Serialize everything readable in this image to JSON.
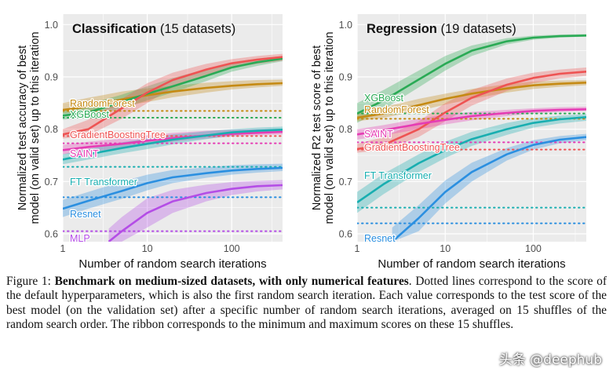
{
  "figure": {
    "caption": {
      "label": "Figure 1:",
      "bold_title": "Benchmark on medium-sized datasets, with only numerical features",
      "text": ". Dotted lines correspond to the score of the default hyperparameters, which is also the first random search iteration. Each value corresponds to the test score of the best model (on the validation set) after a specific number of random search iterations, averaged on 15 shuffles of the random search order. The ribbon corresponds to the minimum and maximum scores on these 15 shuffles."
    },
    "watermark": "头条 @deephub"
  },
  "colors": {
    "RandomForest": "#c58a14",
    "XGBoost": "#2aaa55",
    "GradientBoostingTree": "#ee5353",
    "SAINT": "#e53cb4",
    "FT Transformer": "#19aeb0",
    "Resnet": "#2b8fe0",
    "MLP": "#b44de6",
    "background": "#ebebeb",
    "grid": "#ffffff"
  },
  "chart_data": [
    {
      "type": "line",
      "title_bold": "Classification",
      "title_rest": " (15 datasets)",
      "xlabel": "Number of random search iterations",
      "ylabel_line1": "Normalized test accuracy of best",
      "ylabel_line2": "model (on valid set) up to this iteration",
      "xscale": "log",
      "xlim": [
        1,
        400
      ],
      "ylim": [
        0.585,
        1.02
      ],
      "xticks": [
        1,
        10,
        100
      ],
      "xtick_labels": [
        "1",
        "10",
        "100"
      ],
      "yticks": [
        0.6,
        0.7,
        0.8,
        0.9,
        1.0
      ],
      "ytick_labels": [
        "0.6",
        "0.7",
        "0.8",
        "0.9",
        "1.0"
      ],
      "series": [
        {
          "name": "RandomForest",
          "default": 0.835,
          "x": [
            1,
            2,
            5,
            10,
            20,
            50,
            100,
            200,
            400
          ],
          "y": [
            0.837,
            0.843,
            0.857,
            0.865,
            0.872,
            0.879,
            0.883,
            0.886,
            0.888
          ],
          "lo": [
            0.83,
            0.833,
            0.843,
            0.852,
            0.861,
            0.87,
            0.876,
            0.88,
            0.883
          ],
          "hi": [
            0.85,
            0.86,
            0.872,
            0.878,
            0.883,
            0.889,
            0.892,
            0.894,
            0.895
          ],
          "label_x": 1.0,
          "label_y": 0.85
        },
        {
          "name": "XGBoost",
          "default": 0.822,
          "x": [
            1,
            2,
            5,
            10,
            20,
            50,
            100,
            200,
            400
          ],
          "y": [
            0.826,
            0.832,
            0.852,
            0.868,
            0.882,
            0.902,
            0.918,
            0.928,
            0.935
          ],
          "lo": [
            0.818,
            0.824,
            0.84,
            0.855,
            0.87,
            0.892,
            0.91,
            0.921,
            0.93
          ],
          "hi": [
            0.836,
            0.848,
            0.866,
            0.882,
            0.898,
            0.915,
            0.928,
            0.935,
            0.94
          ],
          "label_x": 1.0,
          "label_y": 0.829
        },
        {
          "name": "GradientBoostingTree",
          "default": 0.787,
          "x": [
            1,
            2,
            5,
            10,
            20,
            50,
            100,
            200,
            400
          ],
          "y": [
            0.79,
            0.8,
            0.84,
            0.87,
            0.894,
            0.914,
            0.926,
            0.933,
            0.938
          ],
          "lo": [
            0.782,
            0.788,
            0.82,
            0.85,
            0.88,
            0.903,
            0.917,
            0.925,
            0.931
          ],
          "hi": [
            0.8,
            0.818,
            0.858,
            0.888,
            0.908,
            0.925,
            0.934,
            0.94,
            0.944
          ],
          "label_x": 1.0,
          "label_y": 0.79
        },
        {
          "name": "SAINT",
          "default": 0.773,
          "x": [
            1,
            2,
            5,
            10,
            20,
            50,
            100,
            200,
            400
          ],
          "y": [
            0.76,
            0.766,
            0.772,
            0.778,
            0.783,
            0.788,
            0.791,
            0.793,
            0.795
          ],
          "lo": [
            0.752,
            0.757,
            0.763,
            0.77,
            0.776,
            0.782,
            0.786,
            0.788,
            0.79
          ],
          "hi": [
            0.77,
            0.776,
            0.782,
            0.788,
            0.793,
            0.797,
            0.799,
            0.8,
            0.801
          ],
          "label_x": 1.0,
          "label_y": 0.754
        },
        {
          "name": "FT Transformer",
          "default": 0.728,
          "x": [
            1,
            2,
            5,
            10,
            20,
            50,
            100,
            200,
            400
          ],
          "y": [
            0.742,
            0.752,
            0.764,
            0.772,
            0.78,
            0.788,
            0.794,
            0.797,
            0.799
          ],
          "lo": [
            0.733,
            0.742,
            0.754,
            0.762,
            0.771,
            0.781,
            0.788,
            0.792,
            0.795
          ],
          "hi": [
            0.752,
            0.762,
            0.775,
            0.782,
            0.79,
            0.796,
            0.8,
            0.803,
            0.805
          ],
          "label_x": 1.0,
          "label_y": 0.7
        },
        {
          "name": "Resnet",
          "default": 0.67,
          "x": [
            1,
            2,
            5,
            10,
            20,
            50,
            100,
            200,
            400
          ],
          "y": [
            0.648,
            0.663,
            0.682,
            0.697,
            0.708,
            0.716,
            0.721,
            0.724,
            0.726
          ],
          "lo": [
            0.632,
            0.648,
            0.667,
            0.683,
            0.697,
            0.707,
            0.713,
            0.717,
            0.72
          ],
          "hi": [
            0.665,
            0.68,
            0.7,
            0.713,
            0.722,
            0.727,
            0.731,
            0.733,
            0.734
          ],
          "label_x": 1.0,
          "label_y": 0.638
        },
        {
          "name": "MLP",
          "default": 0.605,
          "x": [
            3.5,
            5,
            10,
            20,
            50,
            100,
            200,
            400
          ],
          "y": [
            0.585,
            0.605,
            0.64,
            0.662,
            0.678,
            0.686,
            0.691,
            0.693
          ],
          "lo": [
            0.585,
            0.585,
            0.612,
            0.64,
            0.662,
            0.674,
            0.681,
            0.685
          ],
          "hi": [
            0.61,
            0.632,
            0.668,
            0.684,
            0.694,
            0.699,
            0.701,
            0.703
          ],
          "label_x": 1.0,
          "label_y": 0.592
        }
      ]
    },
    {
      "type": "line",
      "title_bold": "Regression",
      "title_rest": " (19 datasets)",
      "xlabel": "Number of random search iterations",
      "ylabel_line1": "Normalized R2 test score of best",
      "ylabel_line2": "model (on valid set) up to this iteration",
      "xscale": "log",
      "xlim": [
        1,
        400
      ],
      "ylim": [
        0.585,
        1.02
      ],
      "xticks": [
        1,
        10,
        100
      ],
      "xtick_labels": [
        "1",
        "10",
        "100"
      ],
      "yticks": [
        0.6,
        0.7,
        0.8,
        0.9,
        1.0
      ],
      "ytick_labels": [
        "0.6",
        "0.7",
        "0.8",
        "0.9",
        "1.0"
      ],
      "series": [
        {
          "name": "XGBoost",
          "default": 0.83,
          "x": [
            1,
            2,
            5,
            10,
            20,
            50,
            100,
            200,
            400
          ],
          "y": [
            0.83,
            0.855,
            0.895,
            0.925,
            0.95,
            0.968,
            0.975,
            0.978,
            0.979
          ],
          "lo": [
            0.812,
            0.838,
            0.88,
            0.912,
            0.94,
            0.962,
            0.971,
            0.975,
            0.977
          ],
          "hi": [
            0.85,
            0.875,
            0.912,
            0.94,
            0.96,
            0.974,
            0.979,
            0.981,
            0.982
          ],
          "label_x": 1.0,
          "label_y": 0.86
        },
        {
          "name": "RandomForest",
          "default": 0.82,
          "x": [
            1,
            2,
            5,
            10,
            20,
            50,
            100,
            200,
            400
          ],
          "y": [
            0.822,
            0.83,
            0.846,
            0.858,
            0.868,
            0.878,
            0.884,
            0.887,
            0.889
          ],
          "lo": [
            0.815,
            0.822,
            0.835,
            0.847,
            0.858,
            0.87,
            0.877,
            0.881,
            0.884
          ],
          "hi": [
            0.832,
            0.842,
            0.858,
            0.868,
            0.877,
            0.886,
            0.891,
            0.893,
            0.894
          ],
          "label_x": 1.0,
          "label_y": 0.838
        },
        {
          "name": "GradientBoostingTree",
          "default": 0.761,
          "x": [
            1,
            2,
            5,
            10,
            20,
            50,
            100,
            200,
            400
          ],
          "y": [
            0.762,
            0.77,
            0.8,
            0.832,
            0.86,
            0.885,
            0.898,
            0.906,
            0.91
          ],
          "lo": [
            0.755,
            0.76,
            0.785,
            0.815,
            0.845,
            0.873,
            0.888,
            0.897,
            0.902
          ],
          "hi": [
            0.772,
            0.785,
            0.815,
            0.85,
            0.875,
            0.897,
            0.908,
            0.914,
            0.918
          ],
          "label_x": 1.0,
          "label_y": 0.766
        },
        {
          "name": "SAINT",
          "default": 0.775,
          "x": [
            1,
            2,
            5,
            10,
            20,
            50,
            100,
            200,
            400
          ],
          "y": [
            0.79,
            0.798,
            0.81,
            0.818,
            0.825,
            0.831,
            0.835,
            0.837,
            0.838
          ],
          "lo": [
            0.78,
            0.788,
            0.8,
            0.809,
            0.817,
            0.825,
            0.83,
            0.833,
            0.835
          ],
          "hi": [
            0.8,
            0.808,
            0.82,
            0.828,
            0.833,
            0.837,
            0.84,
            0.842,
            0.843
          ],
          "label_x": 1.0,
          "label_y": 0.791
        },
        {
          "name": "FT Transformer",
          "default": 0.65,
          "x": [
            1,
            2,
            5,
            10,
            20,
            50,
            100,
            200,
            400
          ],
          "y": [
            0.66,
            0.695,
            0.735,
            0.76,
            0.781,
            0.8,
            0.812,
            0.819,
            0.823
          ],
          "lo": [
            0.64,
            0.676,
            0.718,
            0.745,
            0.768,
            0.789,
            0.803,
            0.811,
            0.816
          ],
          "hi": [
            0.68,
            0.715,
            0.752,
            0.776,
            0.795,
            0.812,
            0.821,
            0.826,
            0.829
          ],
          "label_x": 1.0,
          "label_y": 0.712
        },
        {
          "name": "Resnet",
          "default": 0.62,
          "x": [
            2.5,
            5,
            10,
            20,
            50,
            100,
            200,
            400
          ],
          "y": [
            0.585,
            0.63,
            0.68,
            0.718,
            0.752,
            0.77,
            0.78,
            0.785
          ],
          "lo": [
            0.585,
            0.605,
            0.658,
            0.7,
            0.74,
            0.761,
            0.773,
            0.779
          ],
          "hi": [
            0.612,
            0.655,
            0.702,
            0.736,
            0.764,
            0.779,
            0.787,
            0.791
          ],
          "label_x": 1.0,
          "label_y": 0.592
        }
      ]
    }
  ]
}
